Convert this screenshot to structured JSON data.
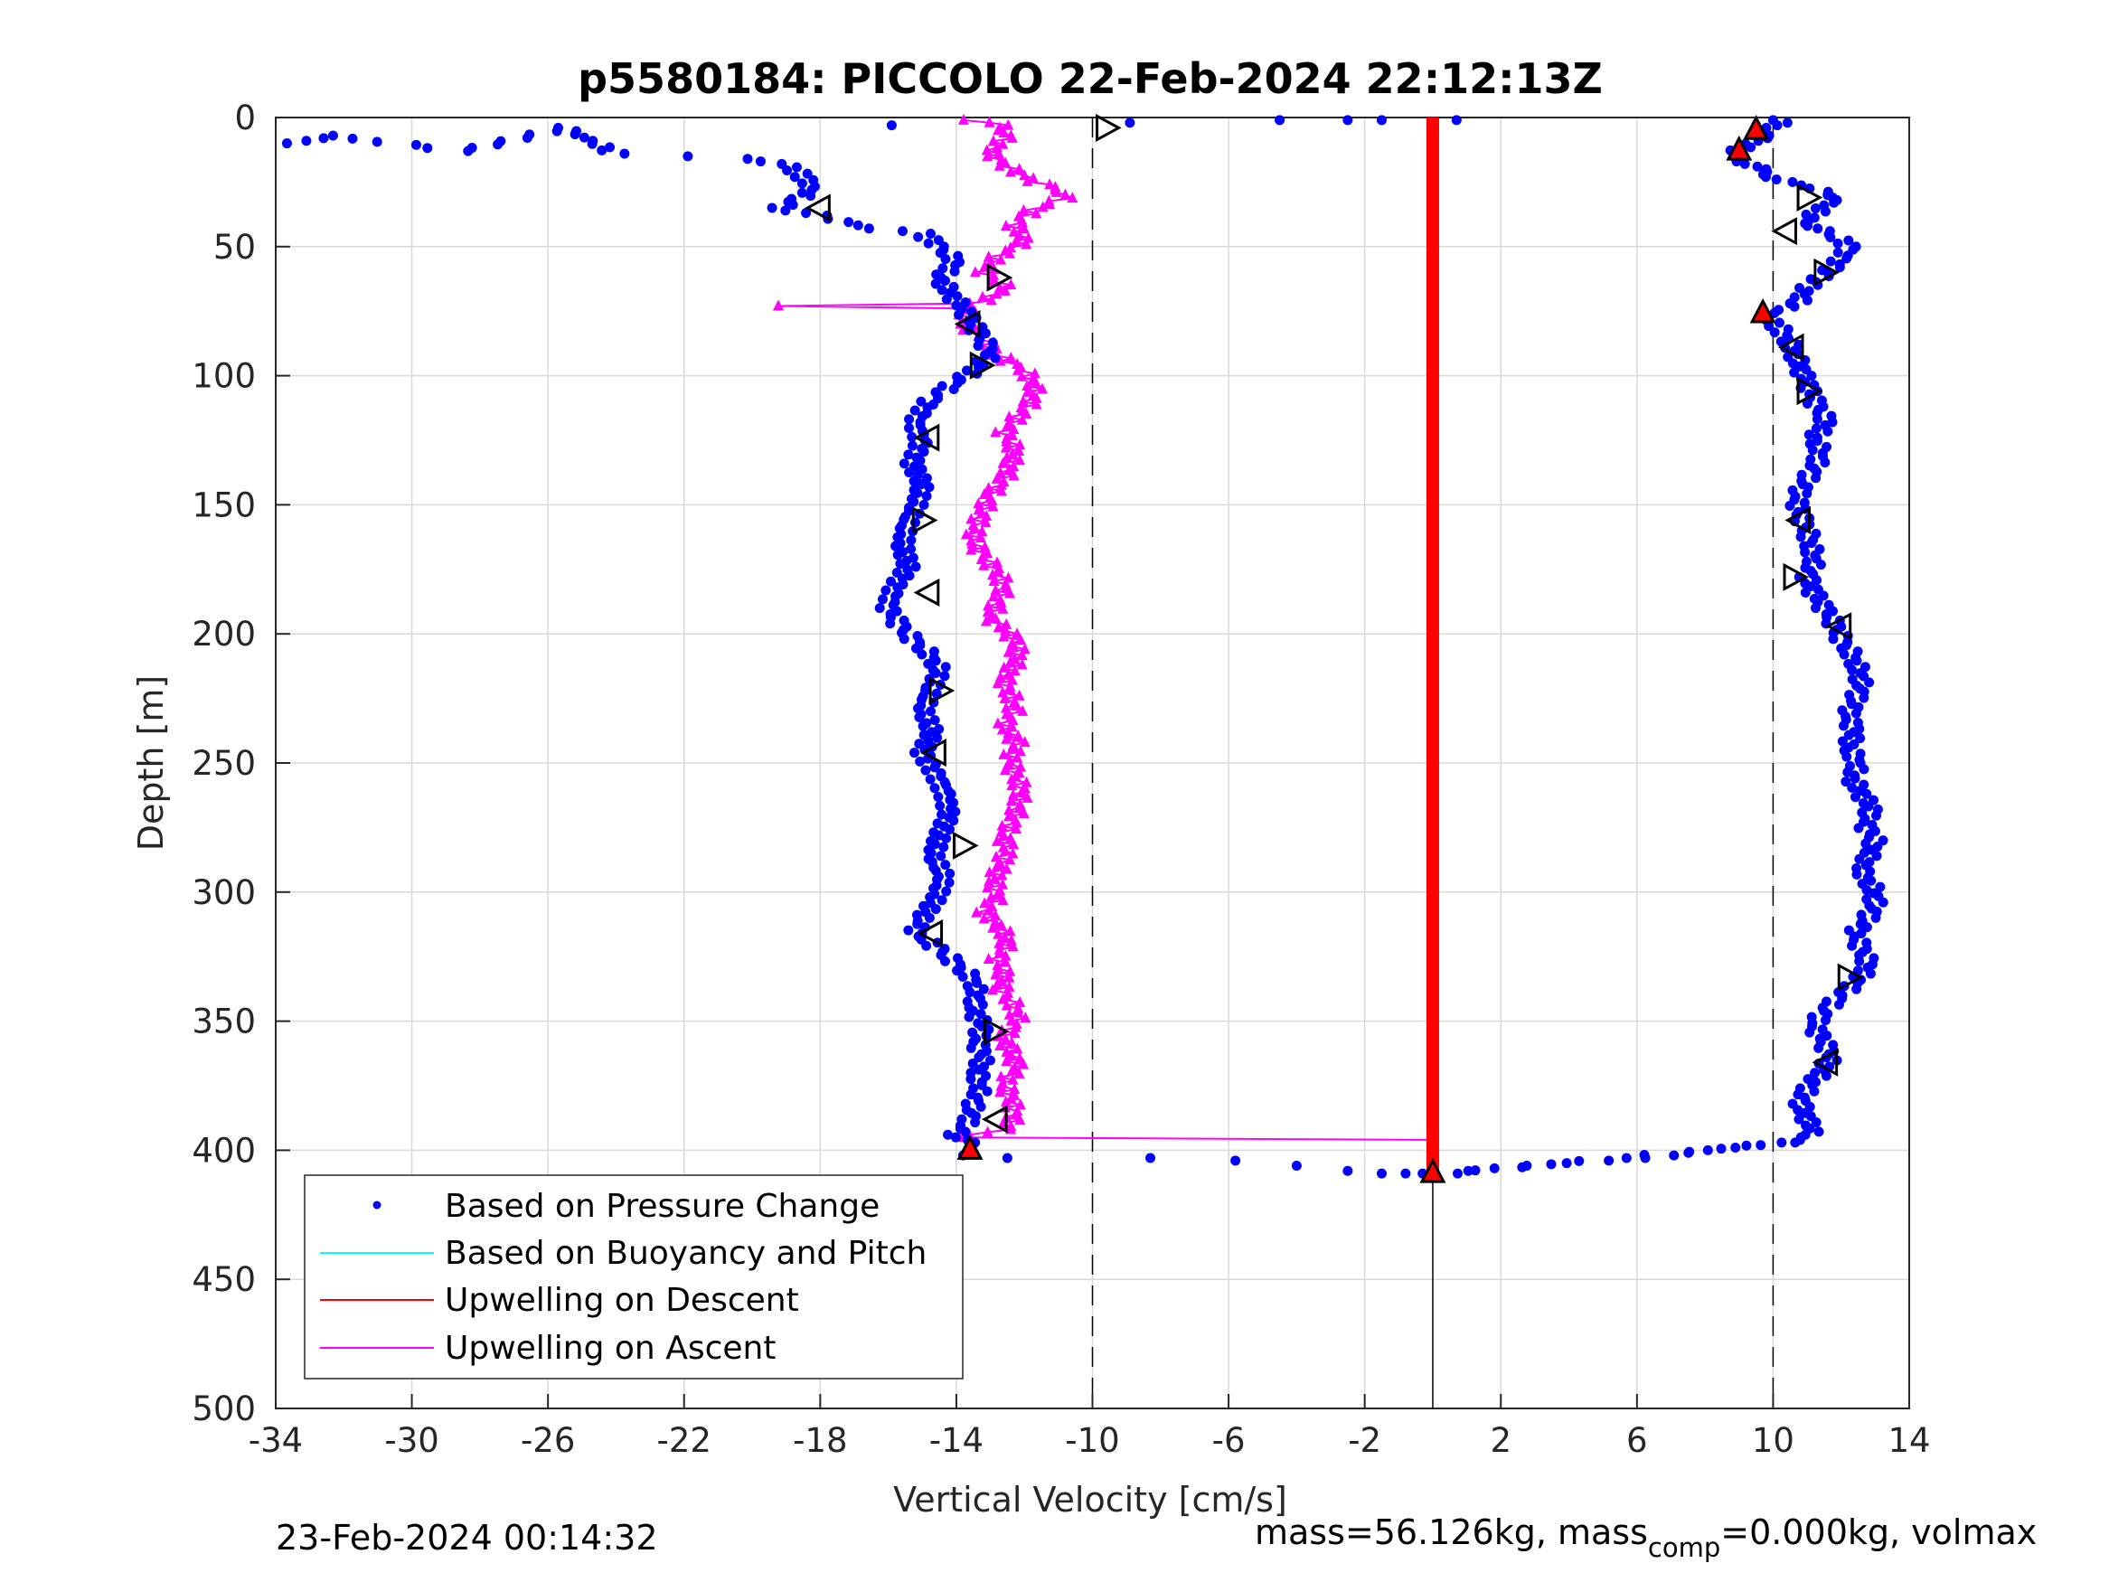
{
  "chart_data": {
    "type": "scatter",
    "title": "p5580184: PICCOLO 22-Feb-2024 22:12:13Z",
    "xlabel": "Vertical Velocity [cm/s]",
    "ylabel": "Depth [m]",
    "xlim": [
      -34,
      14
    ],
    "ylim": [
      0,
      500
    ],
    "y_reversed": true,
    "grid": true,
    "xticks": [
      "-34",
      "-30",
      "-26",
      "-22",
      "-18",
      "-14",
      "-10",
      "-6",
      "-2",
      "2",
      "6",
      "10",
      "14"
    ],
    "xtick_values": [
      -34,
      -30,
      -26,
      -22,
      -18,
      -14,
      -10,
      -6,
      -2,
      2,
      6,
      10,
      14
    ],
    "yticks": [
      "0",
      "50",
      "100",
      "150",
      "200",
      "250",
      "300",
      "350",
      "400",
      "450",
      "500"
    ],
    "ytick_values": [
      0,
      50,
      100,
      150,
      200,
      250,
      300,
      350,
      400,
      450,
      500
    ],
    "reference_lines_x": [
      -10,
      0,
      10
    ],
    "legend": {
      "placement": "bottom-left",
      "entries": [
        {
          "label": "Based on Pressure Change",
          "color": "#0000ff",
          "marker": "dot"
        },
        {
          "label": "Based on Buoyancy and Pitch",
          "color": "#00ffff",
          "marker": "line"
        },
        {
          "label": "Upwelling on Descent",
          "color": "#ff0000",
          "marker": "line"
        },
        {
          "label": "Upwelling on Ascent",
          "color": "#ff00ff",
          "marker": "line"
        }
      ]
    },
    "series": [
      {
        "name": "Based on Pressure Change",
        "color": "#0000ff",
        "profile_descent": [
          [
            -33.5,
            10
          ],
          [
            -32.5,
            7
          ],
          [
            -28.5,
            13
          ],
          [
            -25.5,
            4
          ],
          [
            -24,
            14
          ],
          [
            -22,
            15
          ],
          [
            -20,
            16
          ],
          [
            -19,
            18
          ],
          [
            -18.5,
            23
          ],
          [
            -18.2,
            28
          ],
          [
            -19.2,
            35
          ],
          [
            -18,
            38
          ],
          [
            -16.5,
            43
          ],
          [
            -15,
            45
          ],
          [
            -14.5,
            50
          ],
          [
            -14,
            56
          ],
          [
            -14.5,
            62
          ],
          [
            -14.2,
            68
          ],
          [
            -13.8,
            74
          ],
          [
            -13.5,
            80
          ],
          [
            -13.2,
            86
          ],
          [
            -13,
            92
          ],
          [
            -13.5,
            98
          ],
          [
            -14.2,
            104
          ],
          [
            -14.8,
            110
          ],
          [
            -15.2,
            118
          ],
          [
            -15,
            126
          ],
          [
            -15.3,
            134
          ],
          [
            -15,
            142
          ],
          [
            -15.2,
            150
          ],
          [
            -15.5,
            158
          ],
          [
            -15.6,
            166
          ],
          [
            -15.4,
            174
          ],
          [
            -15.8,
            182
          ],
          [
            -16,
            190
          ],
          [
            -15.7,
            196
          ],
          [
            -15.3,
            202
          ],
          [
            -14.8,
            208
          ],
          [
            -14.5,
            214
          ],
          [
            -14.8,
            222
          ],
          [
            -15,
            230
          ],
          [
            -14.7,
            238
          ],
          [
            -15,
            246
          ],
          [
            -14.6,
            254
          ],
          [
            -14.3,
            262
          ],
          [
            -14.2,
            270
          ],
          [
            -14.5,
            278
          ],
          [
            -14.7,
            286
          ],
          [
            -14.4,
            294
          ],
          [
            -14.6,
            302
          ],
          [
            -15,
            310
          ],
          [
            -15.2,
            316
          ],
          [
            -14.5,
            322
          ],
          [
            -14,
            328
          ],
          [
            -13.5,
            334
          ],
          [
            -13.4,
            340
          ],
          [
            -13.5,
            346
          ],
          [
            -13.2,
            352
          ],
          [
            -13.4,
            358
          ],
          [
            -13.2,
            364
          ],
          [
            -13.4,
            370
          ],
          [
            -13.3,
            376
          ],
          [
            -13.5,
            382
          ],
          [
            -13.6,
            388
          ],
          [
            -14,
            394
          ],
          [
            -13.6,
            398
          ]
        ],
        "profile_ascent": [
          [
            10,
            397
          ],
          [
            9,
            399
          ],
          [
            7,
            402
          ],
          [
            5,
            404
          ],
          [
            3,
            406
          ],
          [
            1,
            408
          ],
          [
            0.5,
            409
          ],
          [
            10.4,
            397
          ],
          [
            11.2,
            394
          ],
          [
            11,
            388
          ],
          [
            10.8,
            382
          ],
          [
            11,
            376
          ],
          [
            11.4,
            370
          ],
          [
            11.7,
            364
          ],
          [
            11.5,
            358
          ],
          [
            11.2,
            352
          ],
          [
            11.5,
            346
          ],
          [
            12,
            340
          ],
          [
            12.5,
            334
          ],
          [
            12.8,
            328
          ],
          [
            12.6,
            322
          ],
          [
            12.4,
            316
          ],
          [
            12.8,
            310
          ],
          [
            13,
            304
          ],
          [
            12.9,
            298
          ],
          [
            12.6,
            292
          ],
          [
            12.8,
            286
          ],
          [
            13,
            280
          ],
          [
            12.7,
            274
          ],
          [
            12.9,
            268
          ],
          [
            12.6,
            262
          ],
          [
            12.3,
            256
          ],
          [
            12.5,
            250
          ],
          [
            12.2,
            244
          ],
          [
            12.4,
            238
          ],
          [
            12.2,
            232
          ],
          [
            12.4,
            226
          ],
          [
            12.6,
            220
          ],
          [
            12.5,
            214
          ],
          [
            12.3,
            208
          ],
          [
            12,
            202
          ],
          [
            11.8,
            196
          ],
          [
            11.5,
            190
          ],
          [
            11.2,
            184
          ],
          [
            11,
            178
          ],
          [
            11.2,
            172
          ],
          [
            11.1,
            166
          ],
          [
            11,
            160
          ],
          [
            10.8,
            154
          ],
          [
            10.7,
            148
          ],
          [
            10.9,
            142
          ],
          [
            11.2,
            136
          ],
          [
            11.4,
            130
          ],
          [
            11.2,
            124
          ],
          [
            11.6,
            118
          ],
          [
            11.3,
            112
          ],
          [
            11.1,
            106
          ],
          [
            10.9,
            100
          ],
          [
            10.7,
            94
          ],
          [
            10.5,
            88
          ],
          [
            10.2,
            82
          ],
          [
            9.8,
            77
          ],
          [
            10.7,
            72
          ],
          [
            11,
            66
          ],
          [
            11.8,
            58
          ],
          [
            12.3,
            50
          ],
          [
            11.5,
            44
          ],
          [
            11,
            40
          ],
          [
            11.5,
            34
          ],
          [
            11.8,
            30
          ],
          [
            10.5,
            25
          ],
          [
            9.8,
            22
          ],
          [
            9.3,
            18
          ],
          [
            8.8,
            14
          ],
          [
            9.5,
            9
          ],
          [
            9.9,
            5
          ],
          [
            10.2,
            2
          ],
          [
            10,
            1
          ]
        ],
        "profile_bottom_descent": [
          [
            -13.8,
            402
          ],
          [
            -12.5,
            403
          ],
          [
            -8.3,
            403
          ],
          [
            -5.8,
            404
          ],
          [
            -4,
            406
          ],
          [
            -2.5,
            408
          ],
          [
            -1.5,
            409
          ],
          [
            -0.8,
            409
          ],
          [
            -0.3,
            409
          ]
        ],
        "profile_surface": [
          [
            -15.9,
            3
          ],
          [
            -8.9,
            2
          ],
          [
            -4.5,
            1
          ],
          [
            -2.5,
            1
          ],
          [
            -1.5,
            1
          ],
          [
            0.7,
            1
          ]
        ]
      },
      {
        "name": "Upwelling on Descent",
        "color": "#ff0000",
        "x_constant": 0,
        "depth_range": [
          0,
          410
        ]
      },
      {
        "name": "Upwelling on Ascent",
        "color": "#ff00ff",
        "profile": [
          [
            -14,
            1
          ],
          [
            -12.5,
            3
          ],
          [
            -12.6,
            8
          ],
          [
            -13,
            14
          ],
          [
            -12.4,
            20
          ],
          [
            -11.5,
            26
          ],
          [
            -10.6,
            30
          ],
          [
            -11.8,
            36
          ],
          [
            -12.3,
            42
          ],
          [
            -12,
            48
          ],
          [
            -12.8,
            54
          ],
          [
            -13.2,
            60
          ],
          [
            -12.5,
            66
          ],
          [
            -13.4,
            72
          ],
          [
            -19,
            73
          ],
          [
            -13.6,
            74
          ],
          [
            -13.8,
            80
          ],
          [
            -13.2,
            86
          ],
          [
            -12.8,
            92
          ],
          [
            -12,
            98
          ],
          [
            -11.7,
            104
          ],
          [
            -11.8,
            110
          ],
          [
            -12.2,
            116
          ],
          [
            -12.6,
            122
          ],
          [
            -12.3,
            128
          ],
          [
            -12.4,
            134
          ],
          [
            -12.6,
            140
          ],
          [
            -13,
            146
          ],
          [
            -13.2,
            152
          ],
          [
            -13.4,
            158
          ],
          [
            -13.5,
            164
          ],
          [
            -13.2,
            170
          ],
          [
            -12.8,
            176
          ],
          [
            -12.6,
            182
          ],
          [
            -12.8,
            188
          ],
          [
            -13,
            194
          ],
          [
            -12.4,
            200
          ],
          [
            -12.2,
            206
          ],
          [
            -12.3,
            212
          ],
          [
            -12.6,
            218
          ],
          [
            -12.4,
            224
          ],
          [
            -12.3,
            230
          ],
          [
            -12.6,
            236
          ],
          [
            -12.2,
            242
          ],
          [
            -12.4,
            248
          ],
          [
            -12.3,
            254
          ],
          [
            -12.1,
            260
          ],
          [
            -12.2,
            266
          ],
          [
            -12.3,
            272
          ],
          [
            -12.6,
            278
          ],
          [
            -12.5,
            284
          ],
          [
            -12.7,
            290
          ],
          [
            -12.9,
            296
          ],
          [
            -12.8,
            302
          ],
          [
            -13.2,
            308
          ],
          [
            -12.7,
            314
          ],
          [
            -12.5,
            320
          ],
          [
            -12.8,
            326
          ],
          [
            -12.6,
            332
          ],
          [
            -12.7,
            338
          ],
          [
            -12.3,
            344
          ],
          [
            -12.2,
            350
          ],
          [
            -12.6,
            356
          ],
          [
            -12.4,
            362
          ],
          [
            -12.2,
            368
          ],
          [
            -12.6,
            374
          ],
          [
            -12.4,
            380
          ],
          [
            -12.3,
            386
          ],
          [
            -12.5,
            392
          ],
          [
            -13.8,
            395
          ],
          [
            0,
            396
          ]
        ]
      }
    ],
    "triangle_markers": {
      "open": [
        [
          -9.6,
          4
        ],
        [
          -18,
          35
        ],
        [
          -12.8,
          62
        ],
        [
          -13.6,
          80
        ],
        [
          -13.3,
          96
        ],
        [
          -14.8,
          124
        ],
        [
          -15,
          156
        ],
        [
          -14.8,
          184
        ],
        [
          -14.5,
          222
        ],
        [
          -14.6,
          246
        ],
        [
          -13.8,
          282
        ],
        [
          -14.7,
          316
        ],
        [
          -12.9,
          354
        ],
        [
          -12.8,
          388
        ],
        [
          11,
          31
        ],
        [
          10.4,
          44
        ],
        [
          11.5,
          60
        ],
        [
          10.6,
          89
        ],
        [
          11,
          106
        ],
        [
          10.8,
          156
        ],
        [
          10.6,
          178
        ],
        [
          12,
          197
        ],
        [
          12.2,
          333
        ],
        [
          11.6,
          366
        ]
      ],
      "filled": [
        [
          9.5,
          5
        ],
        [
          9,
          13
        ],
        [
          9.7,
          76
        ],
        [
          -13.6,
          400
        ],
        [
          0,
          409
        ]
      ]
    },
    "footer_left": "23-Feb-2024 00:14:32",
    "footer_right_prefix": "mass=56.126kg, mass",
    "footer_right_sub": "comp",
    "footer_right_suffix": "=0.000kg, volmax"
  }
}
